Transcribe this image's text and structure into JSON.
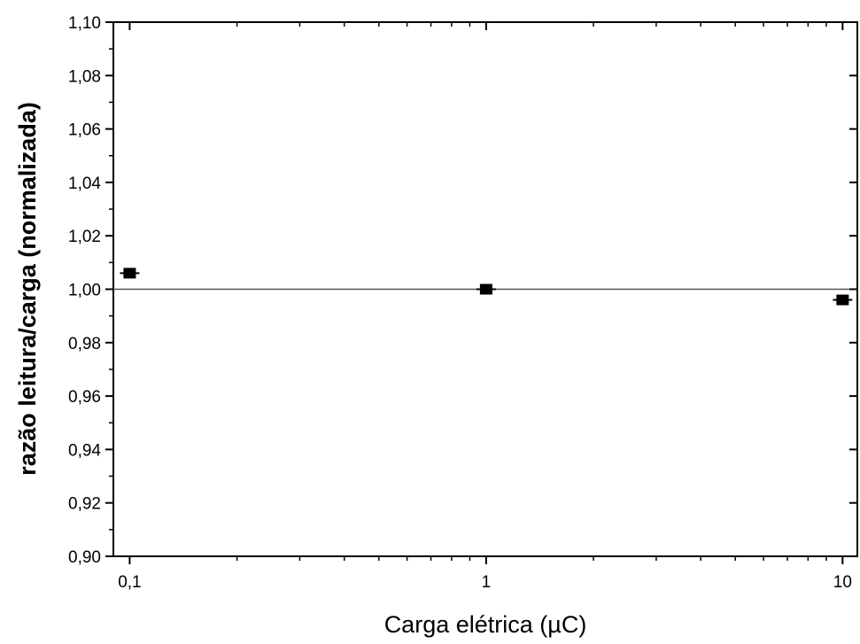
{
  "chart_data": {
    "type": "scatter",
    "title": "",
    "xlabel": "Carga elétrica (µC)",
    "ylabel": "razão leitura/carga (normalizada)",
    "xscale": "log",
    "xlim": [
      0.09,
      11
    ],
    "ylim": [
      0.9,
      1.1
    ],
    "grid": false,
    "x_tick_labels": [
      "0,1",
      "1",
      "10"
    ],
    "x_ticks": [
      0.1,
      1,
      10
    ],
    "y_ticks": [
      0.9,
      0.92,
      0.94,
      0.96,
      0.98,
      1.0,
      1.02,
      1.04,
      1.06,
      1.08,
      1.1
    ],
    "y_tick_labels": [
      "0,90",
      "0,92",
      "0,94",
      "0,96",
      "0,98",
      "1,00",
      "1,02",
      "1,04",
      "1,06",
      "1,08",
      "1,10"
    ],
    "reference_line": {
      "y": 1.0
    },
    "series": [
      {
        "x": [
          0.1,
          1,
          10
        ],
        "y": [
          1.006,
          1.0,
          0.996
        ],
        "marker": "square",
        "color": "#000000"
      }
    ]
  }
}
